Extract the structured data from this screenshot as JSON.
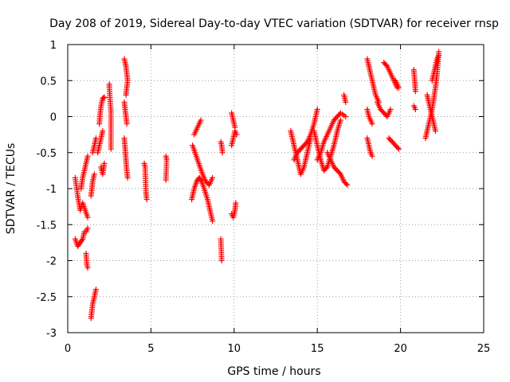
{
  "chart_data": {
    "type": "scatter",
    "title": "Day 208 of 2019, Sidereal Day-to-day VTEC variation (SDTVAR) for receiver rnsp",
    "xlabel": "GPS time / hours",
    "ylabel": "SDTVAR / TECUs",
    "xlim": [
      0,
      25
    ],
    "ylim": [
      -3,
      1
    ],
    "x_ticks": [
      0,
      5,
      10,
      15,
      20,
      25
    ],
    "y_ticks": [
      -3,
      -2.5,
      -2,
      -1.5,
      -1,
      -0.5,
      0,
      0.5,
      1
    ],
    "x_tick_labels": [
      "0",
      "5",
      "10",
      "15",
      "20",
      "25"
    ],
    "y_tick_labels": [
      "-3",
      "-2.5",
      "-2",
      "-1.5",
      "-1",
      "-0.5",
      "0",
      "0.5",
      "1"
    ],
    "grid": true,
    "marker": "plus",
    "color": "#ff0000",
    "series": [
      {
        "name": "SDTVAR",
        "segments": [
          {
            "x": [
              0.45,
              0.6,
              0.75,
              0.9,
              1.05,
              1.2
            ],
            "y": [
              -0.85,
              -1.1,
              -1.3,
              -1.2,
              -1.3,
              -1.4
            ]
          },
          {
            "x": [
              0.45,
              0.6,
              0.75,
              0.9,
              1.0,
              1.1,
              1.2
            ],
            "y": [
              -1.7,
              -1.8,
              -1.75,
              -1.7,
              -1.6,
              -1.6,
              -1.55
            ]
          },
          {
            "x": [
              1.1,
              1.15,
              1.2
            ],
            "y": [
              -1.9,
              -2.05,
              -2.1
            ]
          },
          {
            "x": [
              0.8,
              0.9,
              1.0,
              1.1,
              1.2
            ],
            "y": [
              -1.0,
              -0.85,
              -0.75,
              -0.65,
              -0.55
            ]
          },
          {
            "x": [
              1.4,
              1.5,
              1.6,
              1.7
            ],
            "y": [
              -2.8,
              -2.6,
              -2.5,
              -2.4
            ]
          },
          {
            "x": [
              1.4,
              1.5,
              1.6
            ],
            "y": [
              -1.1,
              -0.9,
              -0.8
            ]
          },
          {
            "x": [
              1.5,
              1.6,
              1.7
            ],
            "y": [
              -0.5,
              -0.4,
              -0.3
            ]
          },
          {
            "x": [
              1.9,
              1.95,
              2.0,
              2.1,
              2.2
            ],
            "y": [
              -0.1,
              0.05,
              0.15,
              0.25,
              0.27
            ]
          },
          {
            "x": [
              1.8,
              1.9,
              2.0,
              2.1
            ],
            "y": [
              -0.5,
              -0.4,
              -0.3,
              -0.2
            ]
          },
          {
            "x": [
              2.0,
              2.1,
              2.2
            ],
            "y": [
              -0.7,
              -0.8,
              -0.65
            ]
          },
          {
            "x": [
              2.5,
              2.5,
              2.6,
              2.6
            ],
            "y": [
              0.45,
              0.4,
              0.05,
              -0.45
            ]
          },
          {
            "x": [
              3.4,
              3.45,
              3.5,
              3.55,
              3.6,
              3.5
            ],
            "y": [
              0.8,
              0.75,
              0.7,
              0.6,
              0.5,
              0.3
            ]
          },
          {
            "x": [
              3.4,
              3.45,
              3.5,
              3.55
            ],
            "y": [
              0.2,
              0.1,
              0.0,
              -0.1
            ]
          },
          {
            "x": [
              3.4,
              3.45,
              3.5,
              3.55,
              3.6
            ],
            "y": [
              -0.3,
              -0.45,
              -0.6,
              -0.75,
              -0.85
            ]
          },
          {
            "x": [
              4.6,
              4.65,
              4.7,
              4.75
            ],
            "y": [
              -0.65,
              -0.7,
              -1.05,
              -1.15
            ]
          },
          {
            "x": [
              5.9,
              5.95,
              5.9
            ],
            "y": [
              -0.55,
              -0.6,
              -0.88
            ]
          },
          {
            "x": [
              7.45,
              7.6,
              7.75,
              7.9,
              8.05,
              8.2,
              8.4,
              8.6,
              8.7
            ],
            "y": [
              -1.15,
              -1.0,
              -0.9,
              -0.85,
              -0.9,
              -1.0,
              -1.15,
              -1.35,
              -1.45
            ]
          },
          {
            "x": [
              7.5,
              7.65,
              7.8,
              7.95,
              8.1,
              8.3,
              8.5,
              8.7
            ],
            "y": [
              -0.4,
              -0.5,
              -0.6,
              -0.7,
              -0.8,
              -0.9,
              -0.95,
              -0.85
            ]
          },
          {
            "x": [
              7.6,
              7.7,
              7.8,
              7.9,
              8.0
            ],
            "y": [
              -0.25,
              -0.2,
              -0.15,
              -0.1,
              -0.05
            ]
          },
          {
            "x": [
              9.2,
              9.25,
              9.3
            ],
            "y": [
              -0.35,
              -0.4,
              -0.5
            ]
          },
          {
            "x": [
              9.2,
              9.25
            ],
            "y": [
              -1.7,
              -2.0
            ]
          },
          {
            "x": [
              9.85,
              9.95,
              10.05,
              10.15
            ],
            "y": [
              -0.4,
              -0.3,
              -0.2,
              -0.25
            ]
          },
          {
            "x": [
              9.85,
              9.95,
              10.05
            ],
            "y": [
              0.05,
              -0.05,
              -0.15
            ]
          },
          {
            "x": [
              9.85,
              9.95,
              10.05,
              10.1
            ],
            "y": [
              -1.35,
              -1.4,
              -1.3,
              -1.2
            ]
          },
          {
            "x": [
              13.4,
              13.6,
              13.8,
              14.0,
              14.2,
              14.4,
              14.6
            ],
            "y": [
              -0.2,
              -0.4,
              -0.6,
              -0.8,
              -0.7,
              -0.5,
              -0.3
            ]
          },
          {
            "x": [
              13.6,
              13.8,
              14.0,
              14.2,
              14.4,
              14.6,
              14.8,
              15.0
            ],
            "y": [
              -0.6,
              -0.5,
              -0.45,
              -0.4,
              -0.35,
              -0.25,
              -0.1,
              0.1
            ]
          },
          {
            "x": [
              14.8,
              15.0,
              15.2,
              15.4,
              15.6,
              15.8,
              16.0,
              16.2,
              16.4
            ],
            "y": [
              -0.2,
              -0.4,
              -0.6,
              -0.75,
              -0.7,
              -0.55,
              -0.4,
              -0.2,
              -0.05
            ]
          },
          {
            "x": [
              15.0,
              15.2,
              15.4,
              15.6,
              15.8,
              16.0,
              16.2,
              16.4,
              16.7
            ],
            "y": [
              -0.6,
              -0.5,
              -0.35,
              -0.25,
              -0.15,
              -0.05,
              0.0,
              0.05,
              0.0
            ]
          },
          {
            "x": [
              15.6,
              15.8,
              16.0,
              16.2,
              16.4,
              16.6,
              16.8
            ],
            "y": [
              -0.5,
              -0.6,
              -0.7,
              -0.75,
              -0.8,
              -0.9,
              -0.95
            ]
          },
          {
            "x": [
              16.6,
              16.65,
              16.7
            ],
            "y": [
              0.3,
              0.25,
              0.2
            ]
          },
          {
            "x": [
              18.0,
              18.1,
              18.2,
              18.3,
              18.4,
              18.5,
              18.7
            ],
            "y": [
              0.8,
              0.7,
              0.6,
              0.5,
              0.4,
              0.3,
              0.2
            ]
          },
          {
            "x": [
              18.0,
              18.1,
              18.2,
              18.3
            ],
            "y": [
              0.1,
              0.0,
              -0.05,
              -0.1
            ]
          },
          {
            "x": [
              18.0,
              18.1,
              18.2,
              18.3
            ],
            "y": [
              -0.3,
              -0.4,
              -0.5,
              -0.55
            ]
          },
          {
            "x": [
              18.6,
              18.8,
              19.0,
              19.2,
              19.4
            ],
            "y": [
              0.2,
              0.1,
              0.05,
              0.0,
              0.1
            ]
          },
          {
            "x": [
              19.0,
              19.2,
              19.4,
              19.6,
              19.8
            ],
            "y": [
              0.75,
              0.7,
              0.6,
              0.5,
              0.4
            ]
          },
          {
            "x": [
              19.3,
              19.5,
              19.7,
              19.9
            ],
            "y": [
              -0.3,
              -0.35,
              -0.4,
              -0.45
            ]
          },
          {
            "x": [
              19.7,
              19.8,
              19.9
            ],
            "y": [
              0.5,
              0.45,
              0.4
            ]
          },
          {
            "x": [
              20.8,
              20.85,
              20.9
            ],
            "y": [
              0.65,
              0.5,
              0.35
            ]
          },
          {
            "x": [
              20.8,
              20.9
            ],
            "y": [
              0.15,
              0.1
            ]
          },
          {
            "x": [
              21.5,
              21.6,
              21.7,
              21.8,
              21.9,
              22.0,
              22.1,
              22.2,
              22.3
            ],
            "y": [
              -0.3,
              -0.2,
              -0.1,
              0.0,
              0.1,
              0.25,
              0.4,
              0.6,
              0.9
            ]
          },
          {
            "x": [
              21.6,
              21.7,
              21.8,
              21.9,
              22.0,
              22.1
            ],
            "y": [
              0.3,
              0.2,
              0.1,
              0.0,
              -0.1,
              -0.2
            ]
          },
          {
            "x": [
              21.9,
              22.0,
              22.1,
              22.2,
              22.3
            ],
            "y": [
              0.5,
              0.6,
              0.7,
              0.8,
              0.85
            ]
          }
        ]
      }
    ]
  }
}
